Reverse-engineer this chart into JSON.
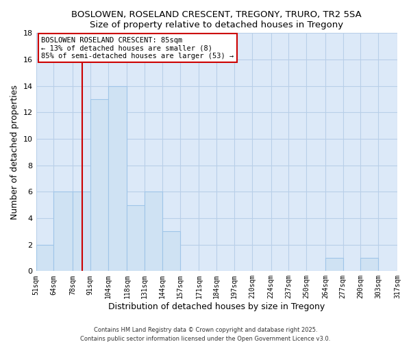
{
  "title": "BOSLOWEN, ROSELAND CRESCENT, TREGONY, TRURO, TR2 5SA",
  "subtitle": "Size of property relative to detached houses in Tregony",
  "xlabel": "Distribution of detached houses by size in Tregony",
  "ylabel": "Number of detached properties",
  "bins": [
    51,
    64,
    78,
    91,
    104,
    118,
    131,
    144,
    157,
    171,
    184,
    197,
    210,
    224,
    237,
    250,
    264,
    277,
    290,
    303,
    317
  ],
  "counts": [
    2,
    6,
    6,
    13,
    14,
    5,
    6,
    3,
    0,
    0,
    0,
    0,
    0,
    0,
    0,
    0,
    1,
    0,
    1,
    0
  ],
  "bar_color": "#cfe2f3",
  "bar_edge_color": "#9fc5e8",
  "ylim": [
    0,
    18
  ],
  "yticks": [
    0,
    2,
    4,
    6,
    8,
    10,
    12,
    14,
    16,
    18
  ],
  "tick_labels": [
    "51sqm",
    "64sqm",
    "78sqm",
    "91sqm",
    "104sqm",
    "118sqm",
    "131sqm",
    "144sqm",
    "157sqm",
    "171sqm",
    "184sqm",
    "197sqm",
    "210sqm",
    "224sqm",
    "237sqm",
    "250sqm",
    "264sqm",
    "277sqm",
    "290sqm",
    "303sqm",
    "317sqm"
  ],
  "vline_x": 85,
  "vline_color": "#cc0000",
  "annotation_title": "BOSLOWEN ROSELAND CRESCENT: 85sqm",
  "annotation_line1": "← 13% of detached houses are smaller (8)",
  "annotation_line2": "85% of semi-detached houses are larger (53) →",
  "background_color": "#ffffff",
  "plot_bg_color": "#dce9f8",
  "grid_color": "#b8cfe8",
  "footer_line1": "Contains HM Land Registry data © Crown copyright and database right 2025.",
  "footer_line2": "Contains public sector information licensed under the Open Government Licence v3.0."
}
